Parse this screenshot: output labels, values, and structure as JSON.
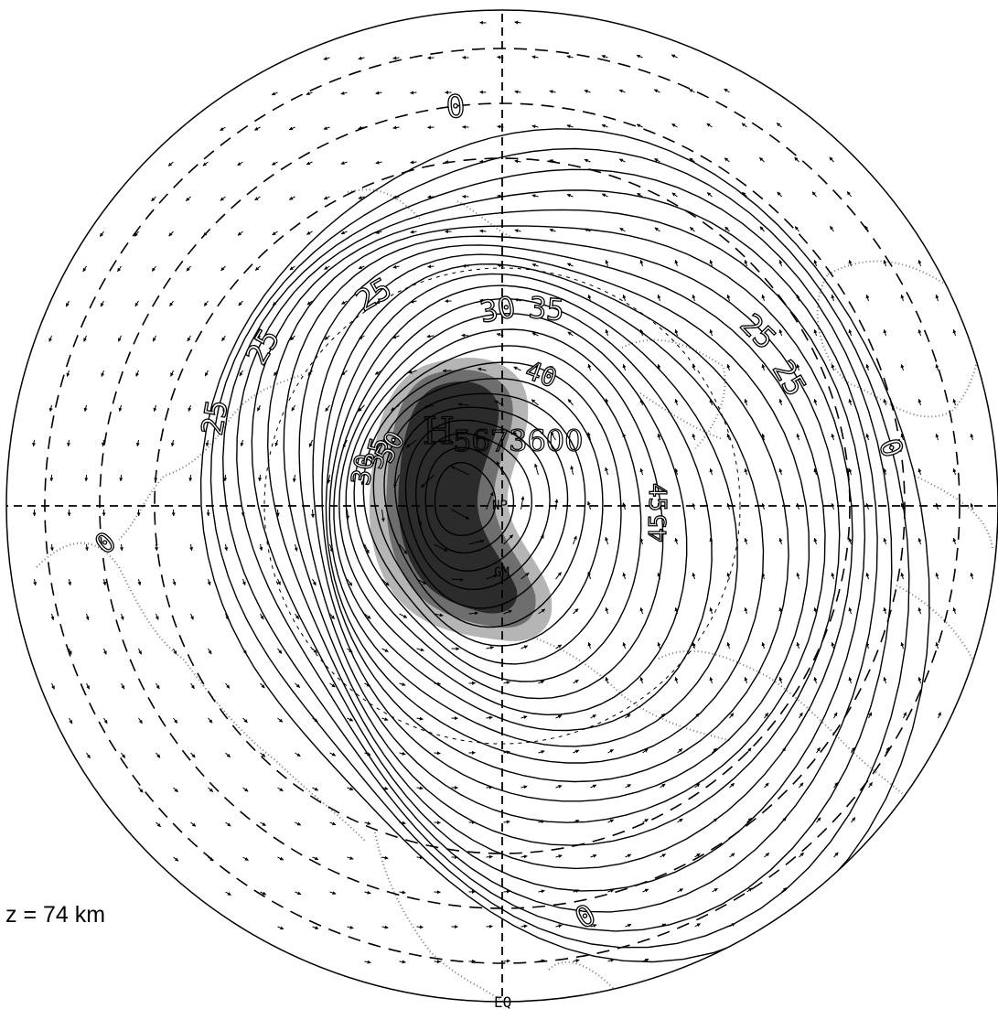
{
  "map": {
    "projection": "north polar stereographic",
    "level_label": "z = 74 km",
    "pole_label": "NP",
    "meridian_label": "GM",
    "equator_label": "EQ",
    "high_label": "H",
    "high_value": "5673600",
    "contour_labels": [
      "0",
      "0",
      "0",
      "0",
      "25",
      "25",
      "25",
      "25",
      "25",
      "30",
      "30",
      "35",
      "35",
      "40",
      "45",
      "45",
      "50"
    ],
    "colors": {
      "background": "#ffffff",
      "lines": "#000000",
      "shade_dark": "#2b2b2b",
      "shade_mid": "#6e6e6e",
      "shade_light": "#b5b5b5",
      "coast": "#777777"
    }
  }
}
